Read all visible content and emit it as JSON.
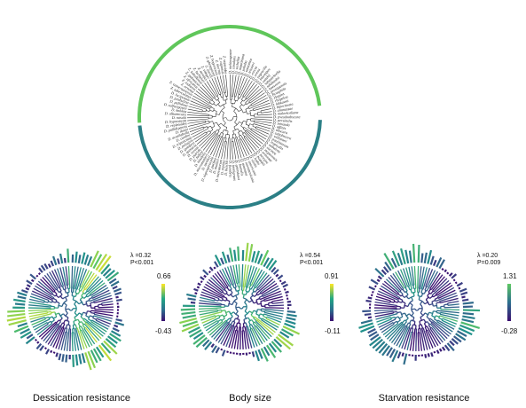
{
  "figure": {
    "taxa": [
      "D. melanogaster",
      "D. simulans",
      "D. sechellia",
      "D. mauritiana",
      "D. yakuba",
      "D. santomea",
      "D. teissieri",
      "D. erecta",
      "D. orena",
      "D. eugracilis",
      "D. biarmipes",
      "D. suzukii",
      "D. subpulchrella",
      "D. takahashii",
      "D. lutescens",
      "D. prostipennis",
      "D. ficusphila",
      "D. elegans",
      "D. rhopaloa",
      "D. kikkawai",
      "D. bipectinata",
      "D. ananassae",
      "D. malerkotliana",
      "D. pseudoobscura",
      "D. persimilis",
      "D. miranda",
      "D. affinis",
      "D. obscura",
      "D. subobscura",
      "D. willistoni",
      "D. paulistorum",
      "D. tropicalis",
      "D. nebulosa",
      "D. sucinea",
      "D. mojavensis",
      "D. arizonae",
      "D. navojoa",
      "D. buzzatii",
      "D. hydei",
      "D. virilis",
      "D. americana",
      "D. novamexicana",
      "D. montana",
      "D. borealis",
      "D. grimshawi",
      "D. immigrans",
      "D. funebris",
      "D. busckii",
      "D. repleta",
      "D. mercatorum",
      "D. mulleri",
      "D. pachea",
      "D. nigrospiracula",
      "D. mettleri",
      "D. micromettleri",
      "D. innubila",
      "D. falleni",
      "D. putrida",
      "D. recens",
      "D. quinaria",
      "D. guttifera",
      "D. palustris",
      "D. tripunctata",
      "D. cardini",
      "D. acutilabella",
      "D. dunni",
      "D. pallidipennis",
      "D. repletoides",
      "D. hypocausta",
      "D. nasuta",
      "D. albomicans",
      "D. kohkoa",
      "D. sulfurigaster",
      "D. pallidosa",
      "D. jambulina",
      "D. lucipennis",
      "Z. tuberculatus",
      "Z. camerounensis",
      "Z. ornatus",
      "Z. indianus",
      "Z. africanus",
      "Z. gabonicus",
      "Z. kolodkinae",
      "Z. lachaisei",
      "Z. taronus",
      "Z. vittiger",
      "Z. davidi",
      "Z. ghesquierei",
      "Z. bogoriensis",
      "Z. inermis",
      "Z. capensis",
      "Z. sepsoides"
    ],
    "panels": [
      {
        "title": "Dessication resistance",
        "lambda": "λ =0.32",
        "pvalue": "P<0.001",
        "scale_max": "0.66",
        "scale_min": "-0.43",
        "palette": [
          "#3b0f70",
          "#3b528b",
          "#21918c",
          "#5ec962",
          "#fde725"
        ]
      },
      {
        "title": "Body size",
        "lambda": "λ =0.54",
        "pvalue": "P<0.001",
        "scale_max": "0.91",
        "scale_min": "-0.11",
        "palette": [
          "#3b0f70",
          "#3b528b",
          "#21918c",
          "#5ec962",
          "#fde725"
        ]
      },
      {
        "title": "Starvation resistance",
        "lambda": "λ =0.20",
        "pvalue": "P=0.009",
        "scale_max": "1.31",
        "scale_min": "-0.28",
        "palette": [
          "#3b0f70",
          "#3b528b",
          "#21918c",
          "#5ec962"
        ]
      }
    ],
    "colors": {
      "clade_green": "#5fc65a",
      "clade_teal": "#2b7f86",
      "branch": "#333333"
    }
  }
}
